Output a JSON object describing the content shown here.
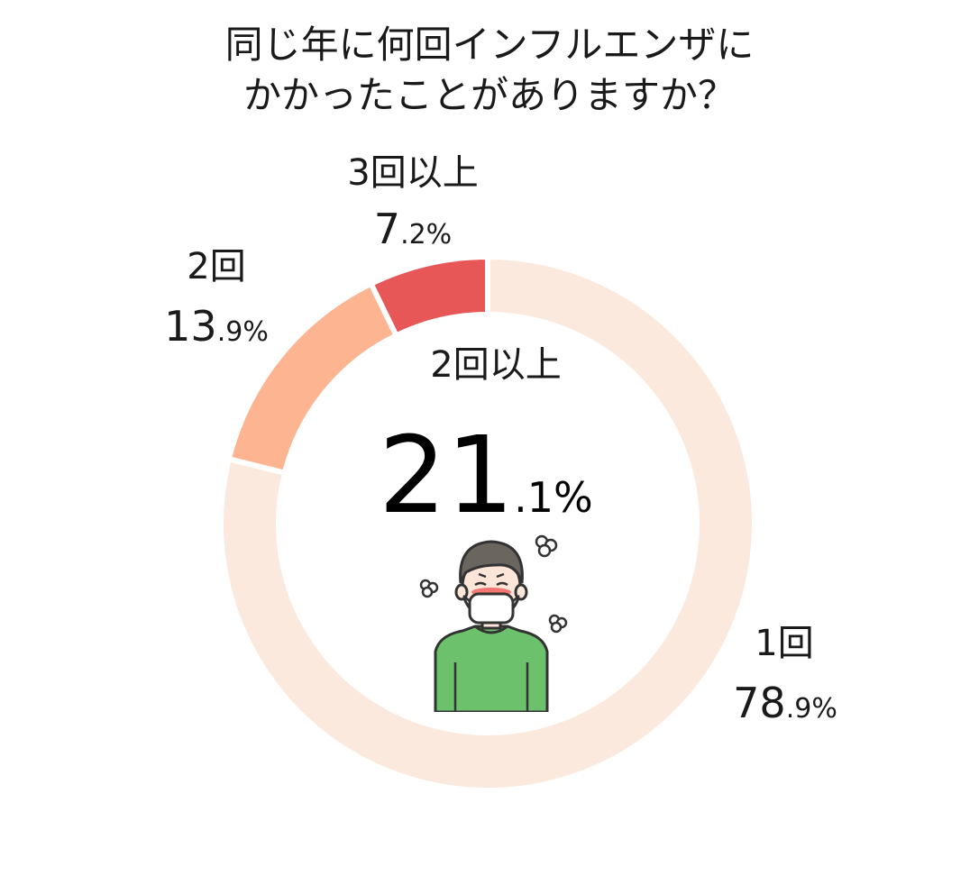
{
  "title": {
    "line1": "同じ年に何回インフルエンザに",
    "line2": "かかったことがありますか？"
  },
  "chart_data": {
    "type": "pie",
    "style": "donut",
    "start_angle_deg": 0,
    "direction": "clockwise",
    "segments": [
      {
        "label": "1回",
        "value": 78.9,
        "int": "78",
        "dec": ".9%",
        "color": "#fce9dd"
      },
      {
        "label": "2回",
        "value": 13.9,
        "int": "13",
        "dec": ".9%",
        "color": "#fcb491"
      },
      {
        "label": "3回以上",
        "value": 7.2,
        "int": "7",
        "dec": ".2%",
        "color": "#e85757"
      }
    ],
    "center": {
      "label": "2回以上",
      "int": "21",
      "dec": ".1%"
    }
  },
  "illustration": {
    "name": "sick-person-with-mask-icon",
    "shirt_color": "#6cc16c",
    "hair_color": "#6b6560",
    "mask_color": "#ffffff",
    "fever_color": "#f05a5a"
  }
}
